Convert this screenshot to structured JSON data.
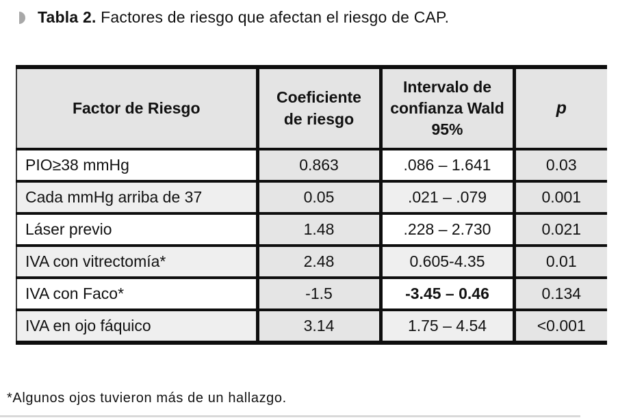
{
  "caption": {
    "bullet_icon": "half-circle-marker",
    "label_bold": "Tabla 2.",
    "label_rest": " Factores de riesgo que afectan el riesgo de CAP."
  },
  "table": {
    "columns": {
      "factor": "Factor de Riesgo",
      "coeficiente": "Coeficiente de riesgo",
      "intervalo": "Intervalo de confianza Wald 95%",
      "p": "p"
    },
    "rows": [
      {
        "factor": "PIO≥38 mmHg",
        "coeficiente": "0.863",
        "intervalo": ".086 – 1.641",
        "p": "0.03"
      },
      {
        "factor": "Cada mmHg arriba de 37",
        "coeficiente": "0.05",
        "intervalo": ".021 – .079",
        "p": "0.001"
      },
      {
        "factor": "Láser previo",
        "coeficiente": "1.48",
        "intervalo": ".228 – 2.730",
        "p": "0.021"
      },
      {
        "factor": "IVA con vitrectomía*",
        "coeficiente": "2.48",
        "intervalo": "0.605-4.35",
        "p": "0.01"
      },
      {
        "factor": "IVA con Faco*",
        "coeficiente": "-1.5",
        "intervalo": "-3.45 – 0.46",
        "p": "0.134"
      },
      {
        "factor": "IVA en ojo fáquico",
        "coeficiente": "3.14",
        "intervalo": "1.75 – 4.54",
        "p": "<0.001"
      }
    ]
  },
  "footnote": "*Algunos ojos tuvieron más de un hallazgo.",
  "colors": {
    "border": "#0e0e0e",
    "header_bg": "#e4e4e4",
    "cell_grey": "#e5e5e5",
    "cell_light": "#efefef",
    "bullet_grey": "#a8a8a8",
    "text": "#111111"
  }
}
